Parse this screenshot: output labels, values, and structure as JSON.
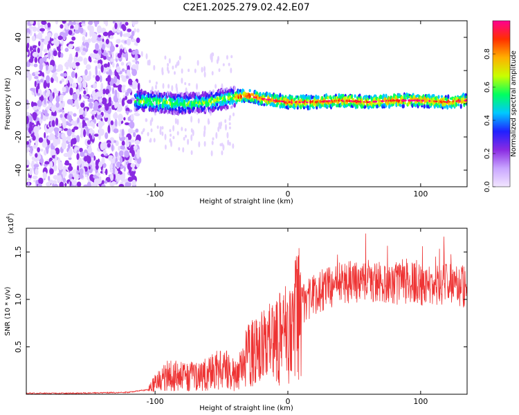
{
  "chart_data": [
    {
      "type": "heatmap",
      "title": "C2E1.2025.279.02.42.E07",
      "xlabel": "Height of straight line (km)",
      "ylabel": "Frequency (Hz)",
      "xlim": [
        -197,
        135
      ],
      "ylim": [
        -50,
        50
      ],
      "x_ticks": [
        -100,
        0,
        100
      ],
      "x_tick_labels": [
        "-100",
        "0",
        "100"
      ],
      "y_ticks": [
        -40,
        -20,
        0,
        20,
        40
      ],
      "y_tick_labels": [
        "-40",
        "-20",
        "0",
        "20",
        "40"
      ],
      "ridge": {
        "x": [
          -115,
          -100,
          -80,
          -60,
          -40,
          -30,
          -20,
          -10,
          0,
          20,
          40,
          60,
          80,
          100,
          120,
          135
        ],
        "freq": [
          2,
          1,
          0,
          1,
          4,
          5,
          3,
          2,
          1,
          1,
          2,
          1,
          2,
          2,
          1,
          2
        ]
      },
      "noise_region": [
        -197,
        -110
      ],
      "colorbar": {
        "label": "Normalized spectral amplitude",
        "range": [
          0,
          1
        ],
        "ticks": [
          0,
          0.2,
          0.4,
          0.6,
          0.8
        ],
        "tick_labels": [
          "0.0",
          "0.2",
          "0.4",
          "0.6",
          "0.8"
        ],
        "colormap": [
          "#f2e6ff",
          "#c9a6ff",
          "#8a2be2",
          "#2020ff",
          "#00c8ff",
          "#00ff60",
          "#c8ff00",
          "#ffb000",
          "#ff3000",
          "#ff0090"
        ]
      }
    },
    {
      "type": "line",
      "xlabel": "Height of straight line (km)",
      "ylabel": "SNR (10 * v/v)",
      "y_scale_label": "(x10",
      "y_scale_exp": "4",
      "xlim": [
        -197,
        135
      ],
      "ylim": [
        0,
        1.75
      ],
      "x_ticks": [
        -100,
        0,
        100
      ],
      "x_tick_labels": [
        "-100",
        "0",
        "100"
      ],
      "y_ticks": [
        0.5,
        1.0,
        1.5
      ],
      "y_tick_labels": [
        "0.5",
        "1.0",
        "1.5"
      ],
      "series": [
        {
          "name": "SNR",
          "color": "#ee3333",
          "envelope_x": [
            -197,
            -160,
            -120,
            -105,
            -100,
            -90,
            -80,
            -70,
            -60,
            -50,
            -40,
            -30,
            -20,
            -10,
            0,
            10,
            20,
            30,
            40,
            60,
            80,
            100,
            120,
            135
          ],
          "envelope_y": [
            0.01,
            0.01,
            0.02,
            0.05,
            0.12,
            0.22,
            0.24,
            0.2,
            0.22,
            0.3,
            0.22,
            0.42,
            0.5,
            0.58,
            0.68,
            0.92,
            1.05,
            1.12,
            1.18,
            1.2,
            1.17,
            1.16,
            1.15,
            1.14
          ]
        }
      ]
    }
  ]
}
